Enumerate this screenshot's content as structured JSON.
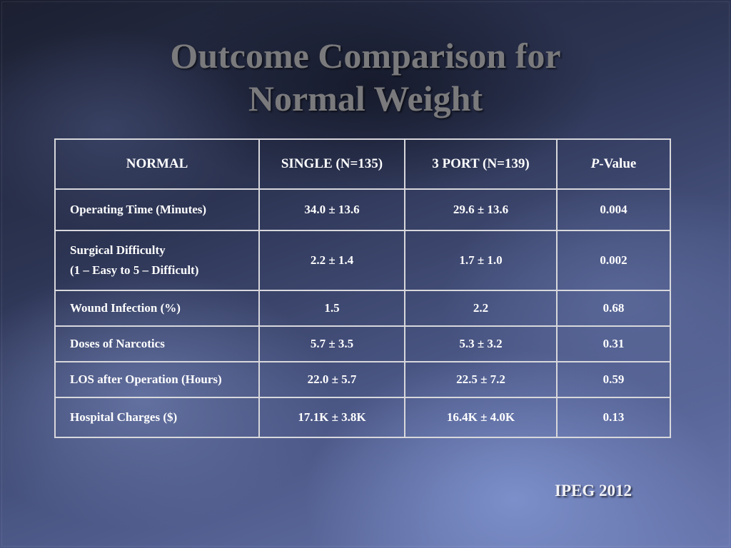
{
  "title": {
    "line1": "Outcome Comparison for",
    "line2": "Normal Weight"
  },
  "table": {
    "headers": {
      "col0": "NORMAL",
      "col1": "SINGLE (N=135)",
      "col2": "3 PORT (N=139)",
      "col3_italic": "P",
      "col3_rest": "-Value"
    },
    "rows": [
      {
        "label": "Operating Time (Minutes)",
        "single": "34.0 ± 13.6",
        "port3": "29.6 ± 13.6",
        "p": "0.004"
      },
      {
        "label": "Surgical Difficulty",
        "label_line2": "(1 – Easy to 5 – Difficult)",
        "single": "2.2 ± 1.4",
        "port3": "1.7 ± 1.0",
        "p": "0.002"
      },
      {
        "label": "Wound Infection (%)",
        "single": "1.5",
        "port3": "2.2",
        "p": "0.68"
      },
      {
        "label": "Doses of Narcotics",
        "single": "5.7 ± 3.5",
        "port3": "5.3 ± 3.2",
        "p": "0.31"
      },
      {
        "label": "LOS after Operation (Hours)",
        "single": "22.0 ± 5.7",
        "port3": "22.5 ± 7.2",
        "p": "0.59"
      },
      {
        "label": "Hospital Charges ($)",
        "single": "17.1K ± 3.8K",
        "port3": "16.4K ± 4.0K",
        "p": "0.13"
      }
    ]
  },
  "footer": {
    "text": "IPEG 2012"
  },
  "colors": {
    "title": "#7a7a7c",
    "table_text": "#ffffff",
    "table_border": "#d8d8dc",
    "background_dark": "#1b1f30",
    "background_light": "#6a78b0"
  }
}
